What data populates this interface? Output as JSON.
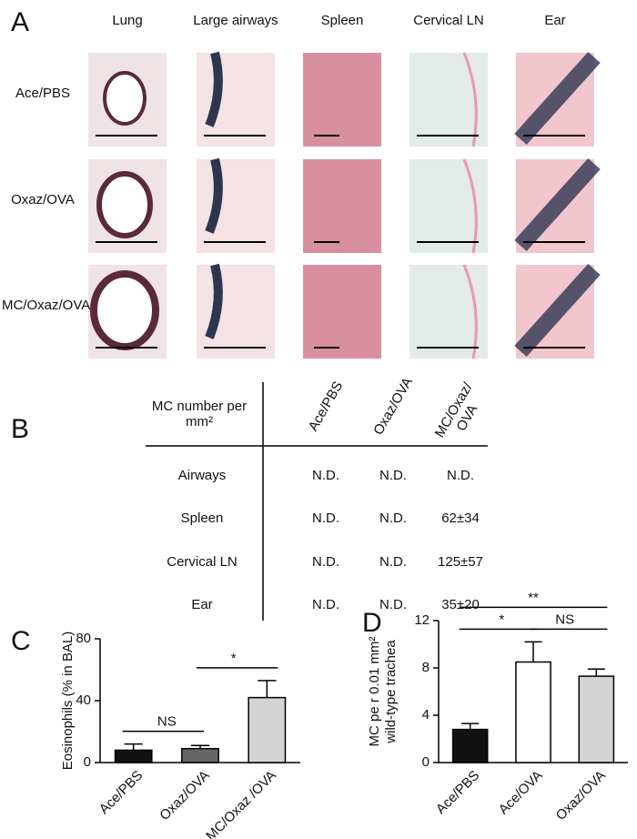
{
  "panel_a": {
    "label": "A",
    "columns": [
      "Lung",
      "Large airways",
      "Spleen",
      "Cervical LN",
      "Ear"
    ],
    "rows": [
      "Ace/PBS",
      "Oxaz/OVA",
      "MC/Oxaz/OVA"
    ]
  },
  "panel_b": {
    "label": "B",
    "header": "MC number per mm²",
    "columns": [
      "Ace/PBS",
      "Oxaz/OVA",
      "MC/Oxaz/ OVA"
    ],
    "rows": [
      [
        "Airways",
        "N.D.",
        "N.D.",
        "N.D."
      ],
      [
        "Spleen",
        "N.D.",
        "N.D.",
        "62±34"
      ],
      [
        "Cervical LN",
        "N.D.",
        "N.D.",
        "125±57"
      ],
      [
        "Ear",
        "N.D.",
        "N.D.",
        "35±20"
      ]
    ]
  },
  "chart_data": [
    {
      "type": "bar",
      "panel": "C",
      "y_label": [
        "Eosinophils (% in BAL)"
      ],
      "categories": [
        "Ace/PBS",
        "Oxaz/OVA",
        "MC/Oxaz /OVA"
      ],
      "values": [
        8,
        9,
        42
      ],
      "errors": [
        4,
        2,
        11
      ],
      "colors": [
        "#111111",
        "#666666",
        "#d4d4d4"
      ],
      "ylim": [
        0,
        80
      ],
      "yticks": [
        0,
        40,
        80
      ],
      "annotations": [
        {
          "text": "NS",
          "between": [
            0,
            1
          ]
        },
        {
          "text": "*",
          "between": [
            1,
            2
          ]
        }
      ]
    },
    {
      "type": "bar",
      "panel": "D",
      "y_label": [
        "MC pe r 0.01 mm²",
        "wild-type trachea"
      ],
      "categories": [
        "Ace/PBS",
        "Ace/OVA",
        "Oxaz/OVA"
      ],
      "values": [
        2.8,
        8.5,
        7.3
      ],
      "errors": [
        0.5,
        1.7,
        0.6
      ],
      "colors": [
        "#111111",
        "#ffffff",
        "#d4d4d4"
      ],
      "ylim": [
        0,
        12
      ],
      "yticks": [
        0,
        4,
        8,
        12
      ],
      "annotations": [
        {
          "text": "*",
          "between": [
            0,
            1
          ]
        },
        {
          "text": "NS",
          "between": [
            1,
            2
          ]
        },
        {
          "text": "**",
          "between": [
            0,
            2
          ]
        }
      ]
    }
  ]
}
